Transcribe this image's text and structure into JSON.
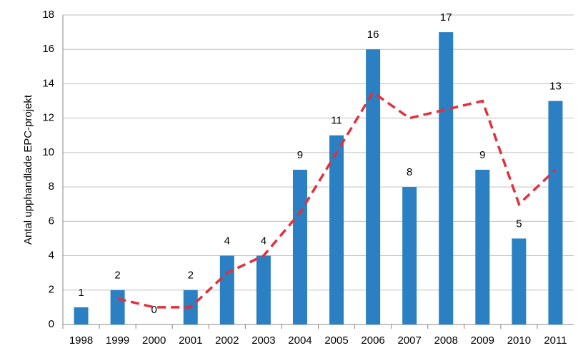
{
  "chart_data": {
    "type": "bar",
    "y_label": "Antal upphandlade EPC-projekt",
    "categories": [
      "1998",
      "1999",
      "2000",
      "2001",
      "2002",
      "2003",
      "2004",
      "2005",
      "2006",
      "2007",
      "2008",
      "2009",
      "2010",
      "2011"
    ],
    "values": [
      1,
      2,
      0,
      2,
      4,
      4,
      9,
      11,
      16,
      8,
      17,
      9,
      5,
      13
    ],
    "color": "#2b7fc3",
    "line_values": [
      null,
      1.5,
      1,
      1,
      3,
      4,
      6.5,
      10,
      13.5,
      12,
      12.5,
      13,
      7,
      9
    ],
    "line_color": "#e0323c",
    "ylim": [
      0,
      18
    ],
    "yticks": [
      0,
      2,
      4,
      6,
      8,
      10,
      12,
      14,
      16,
      18
    ],
    "grid": true
  }
}
